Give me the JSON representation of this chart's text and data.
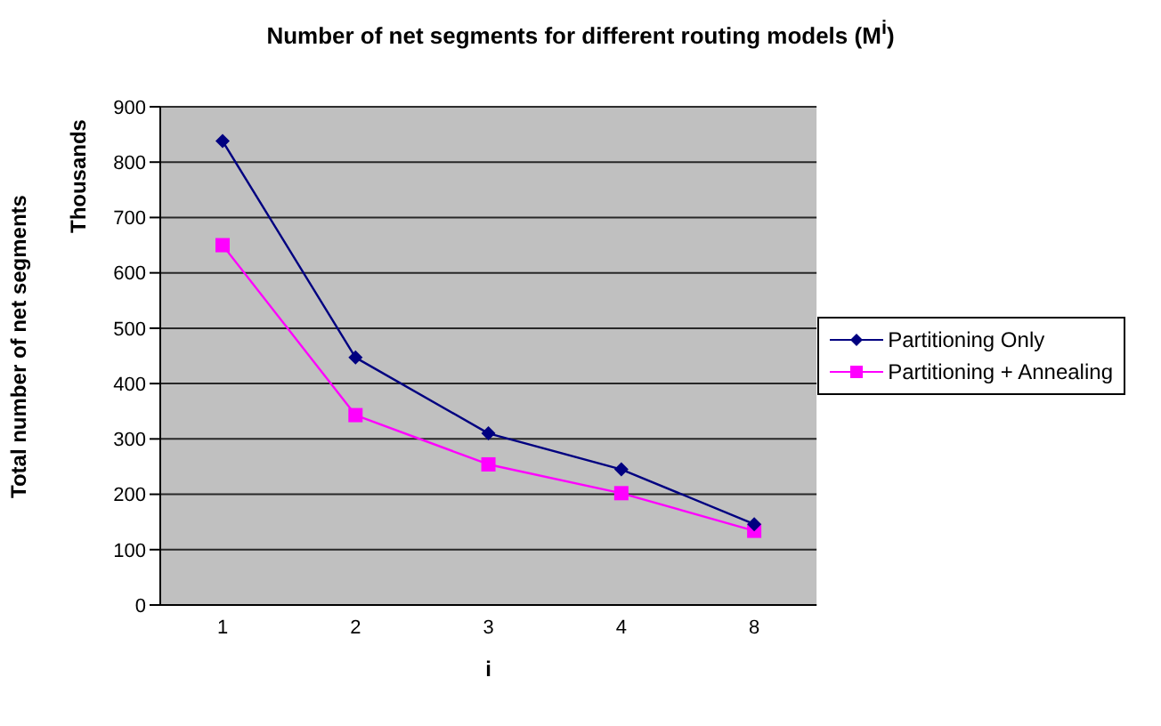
{
  "chart_data": {
    "type": "line",
    "title": "Number of net segments for different routing models (M$^{i}$)",
    "xlabel": "i",
    "ylabel": "Total number of net segments",
    "annotations": [
      "Thousands"
    ],
    "categories": [
      "1",
      "2",
      "3",
      "4",
      "8"
    ],
    "series": [
      {
        "name": "Partitioning Only",
        "color": "#000080",
        "marker": "diamond",
        "values": [
          838,
          447,
          310,
          245,
          146
        ]
      },
      {
        "name": "Partitioning + Annealing",
        "color": "#ff00ff",
        "marker": "square",
        "values": [
          650,
          343,
          254,
          202,
          134
        ]
      }
    ],
    "ylim": [
      0,
      900
    ],
    "yticks": [
      0,
      100,
      200,
      300,
      400,
      500,
      600,
      700,
      800,
      900
    ],
    "grid": "y",
    "legend": "right",
    "line_style": "solid"
  }
}
